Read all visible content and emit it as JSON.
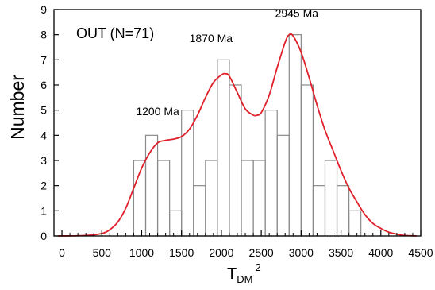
{
  "chart_data": {
    "type": "bar",
    "title": "OUT (N=71)",
    "ylabel": "Number",
    "xlabel": {
      "main": "T",
      "sub": "DM",
      "sup": "2"
    },
    "xlim": [
      -100,
      4500
    ],
    "ylim": [
      0,
      9
    ],
    "x_ticks": [
      0,
      500,
      1000,
      1500,
      2000,
      2500,
      3000,
      3500,
      4000,
      4500
    ],
    "y_ticks": [
      0,
      1,
      2,
      3,
      4,
      5,
      6,
      7,
      8,
      9
    ],
    "bin_width": 150,
    "histogram": [
      {
        "x0": 900,
        "x1": 1050,
        "value": 3
      },
      {
        "x0": 1050,
        "x1": 1200,
        "value": 4
      },
      {
        "x0": 1200,
        "x1": 1350,
        "value": 3
      },
      {
        "x0": 1350,
        "x1": 1500,
        "value": 1
      },
      {
        "x0": 1500,
        "x1": 1650,
        "value": 5
      },
      {
        "x0": 1650,
        "x1": 1800,
        "value": 2
      },
      {
        "x0": 1800,
        "x1": 1950,
        "value": 3
      },
      {
        "x0": 1950,
        "x1": 2100,
        "value": 7
      },
      {
        "x0": 2100,
        "x1": 2250,
        "value": 6
      },
      {
        "x0": 2250,
        "x1": 2400,
        "value": 3
      },
      {
        "x0": 2400,
        "x1": 2550,
        "value": 3
      },
      {
        "x0": 2550,
        "x1": 2700,
        "value": 5
      },
      {
        "x0": 2700,
        "x1": 2850,
        "value": 4
      },
      {
        "x0": 2850,
        "x1": 3000,
        "value": 8
      },
      {
        "x0": 3000,
        "x1": 3150,
        "value": 6
      },
      {
        "x0": 3150,
        "x1": 3300,
        "value": 2
      },
      {
        "x0": 3300,
        "x1": 3450,
        "value": 3
      },
      {
        "x0": 3450,
        "x1": 3600,
        "value": 2
      },
      {
        "x0": 3600,
        "x1": 3750,
        "value": 1
      }
    ],
    "density_curve": {
      "color": "#e0202a",
      "x": [
        -50,
        300,
        500,
        600,
        700,
        800,
        900,
        1000,
        1100,
        1200,
        1300,
        1400,
        1500,
        1600,
        1700,
        1800,
        1900,
        2000,
        2050,
        2100,
        2200,
        2300,
        2400,
        2450,
        2500,
        2600,
        2700,
        2800,
        2850,
        2900,
        3000,
        3100,
        3200,
        3300,
        3400,
        3500,
        3600,
        3700,
        3800,
        3900,
        4000,
        4100,
        4200,
        4300,
        4450
      ],
      "y": [
        0,
        0.02,
        0.1,
        0.25,
        0.55,
        1.1,
        1.9,
        2.7,
        3.3,
        3.7,
        3.8,
        3.85,
        3.95,
        4.25,
        4.8,
        5.5,
        6.1,
        6.4,
        6.45,
        6.35,
        5.7,
        5.05,
        4.8,
        4.8,
        4.9,
        5.6,
        6.7,
        7.7,
        8.0,
        7.95,
        7.3,
        6.3,
        5.2,
        4.2,
        3.4,
        2.6,
        1.9,
        1.35,
        0.85,
        0.5,
        0.3,
        0.15,
        0.07,
        0.02,
        0
      ]
    },
    "annotations": [
      {
        "text": "1200 Ma",
        "x": 1200,
        "y": 4.8
      },
      {
        "text": "1870 Ma",
        "x": 1870,
        "y": 7.7
      },
      {
        "text": "2945 Ma",
        "x": 2945,
        "y": 8.7
      }
    ],
    "colors": {
      "bar_stroke": "#8a8a8a",
      "axis": "#000000",
      "curve": "#e0202a"
    }
  }
}
